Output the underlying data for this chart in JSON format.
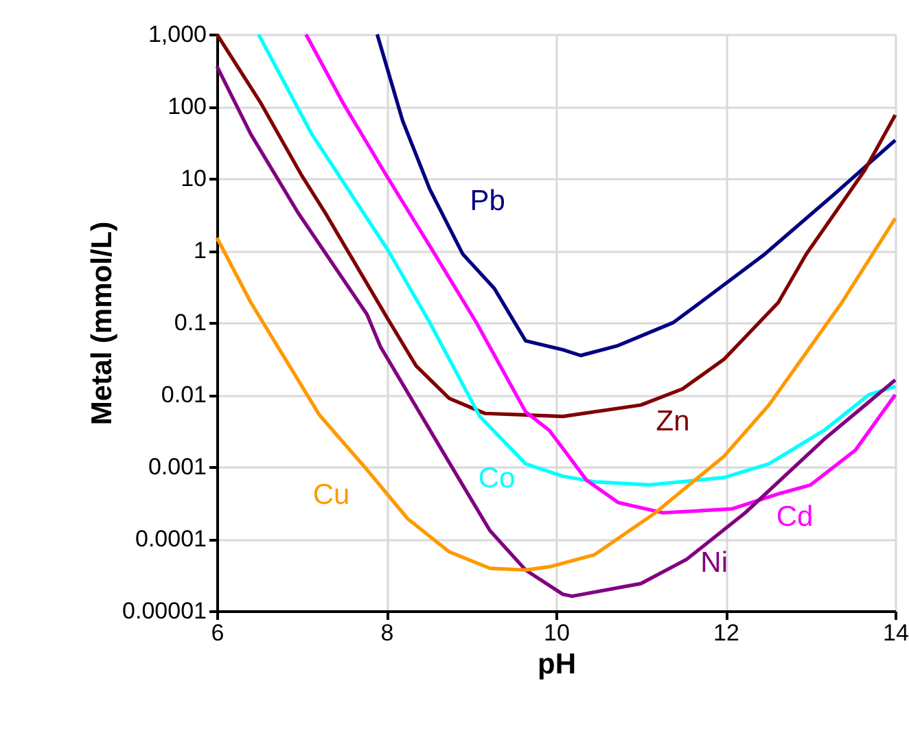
{
  "chart_data": {
    "type": "line",
    "xlabel": "pH",
    "ylabel": "Metal (mmol/L)",
    "log": "y",
    "grid": true,
    "legend": false,
    "marker": "none",
    "line_style": "solid",
    "xlim": [
      6,
      14
    ],
    "xticks": [
      6,
      8,
      10,
      12,
      14
    ],
    "ylim": [
      1e-05,
      1000
    ],
    "yticks": [
      {
        "value": 1e-05,
        "label": "0.00001"
      },
      0.0001,
      0.001,
      0.01,
      0.1,
      1,
      10,
      100,
      {
        "value": 1000,
        "label": "1,000"
      }
    ],
    "series": [
      {
        "name": "Pb",
        "color": "#000080",
        "x": [
          7.89,
          8.19,
          8.51,
          8.9,
          9.27,
          9.64,
          10.08,
          10.29,
          10.73,
          11.38,
          11.7,
          12.46,
          13.27,
          14
        ],
        "values": [
          1000,
          63,
          7.1,
          0.89,
          0.3,
          0.056,
          0.042,
          0.035,
          0.048,
          0.1,
          0.19,
          0.89,
          5.9,
          34
        ]
      },
      {
        "name": "Zn",
        "color": "#800000",
        "x": [
          6,
          6.52,
          7.0,
          7.28,
          8.02,
          8.35,
          8.74,
          9.16,
          10.08,
          11.0,
          11.49,
          11.98,
          12.62,
          12.95,
          13.64,
          14
        ],
        "values": [
          1000,
          110,
          11,
          3.3,
          0.11,
          0.025,
          0.0089,
          0.0055,
          0.005,
          0.0072,
          0.012,
          0.031,
          0.19,
          0.89,
          13,
          76
        ]
      },
      {
        "name": "Co",
        "color": "#00ffff",
        "x": [
          6.49,
          7.12,
          8.02,
          8.51,
          9.1,
          9.64,
          10.08,
          10.45,
          11.1,
          11.98,
          12.51,
          13.16,
          13.69,
          14
        ],
        "values": [
          1000,
          41,
          1.0,
          0.1,
          0.005,
          0.0011,
          0.00074,
          0.00062,
          0.00056,
          0.00071,
          0.0011,
          0.0032,
          0.01,
          0.013
        ]
      },
      {
        "name": "Cd",
        "color": "#ff00ff",
        "x": [
          7.05,
          7.49,
          8.02,
          8.57,
          9.06,
          9.64,
          9.92,
          10.08,
          10.36,
          10.73,
          11.26,
          12.07,
          12.62,
          13.0,
          13.53,
          14
        ],
        "values": [
          1000,
          110,
          10,
          0.89,
          0.1,
          0.0058,
          0.0032,
          0.0018,
          0.00065,
          0.00032,
          0.00023,
          0.00026,
          0.00042,
          0.00056,
          0.0017,
          0.01
        ]
      },
      {
        "name": "Ni",
        "color": "#800080",
        "x": [
          6,
          6.4,
          6.96,
          7.77,
          7.93,
          8.8,
          9.22,
          9.64,
          10.08,
          10.19,
          11.0,
          11.54,
          12.23,
          13.16,
          14
        ],
        "values": [
          360,
          41,
          3.3,
          0.13,
          0.046,
          0.00087,
          0.00013,
          3.7e-05,
          1.7e-05,
          1.6e-05,
          2.4e-05,
          5.2e-05,
          0.00023,
          0.0024,
          0.016
        ]
      },
      {
        "name": "Cu",
        "color": "#ff9900",
        "x": [
          6,
          6.4,
          7.21,
          7.77,
          8.25,
          8.74,
          9.22,
          9.64,
          9.92,
          10.45,
          11.17,
          11.98,
          12.51,
          13.37,
          14
        ],
        "values": [
          1.5,
          0.19,
          0.0052,
          0.00091,
          0.00019,
          6.6e-05,
          3.9e-05,
          3.7e-05,
          4.1e-05,
          6e-05,
          0.00023,
          0.0014,
          0.0072,
          0.19,
          2.8
        ]
      }
    ]
  }
}
